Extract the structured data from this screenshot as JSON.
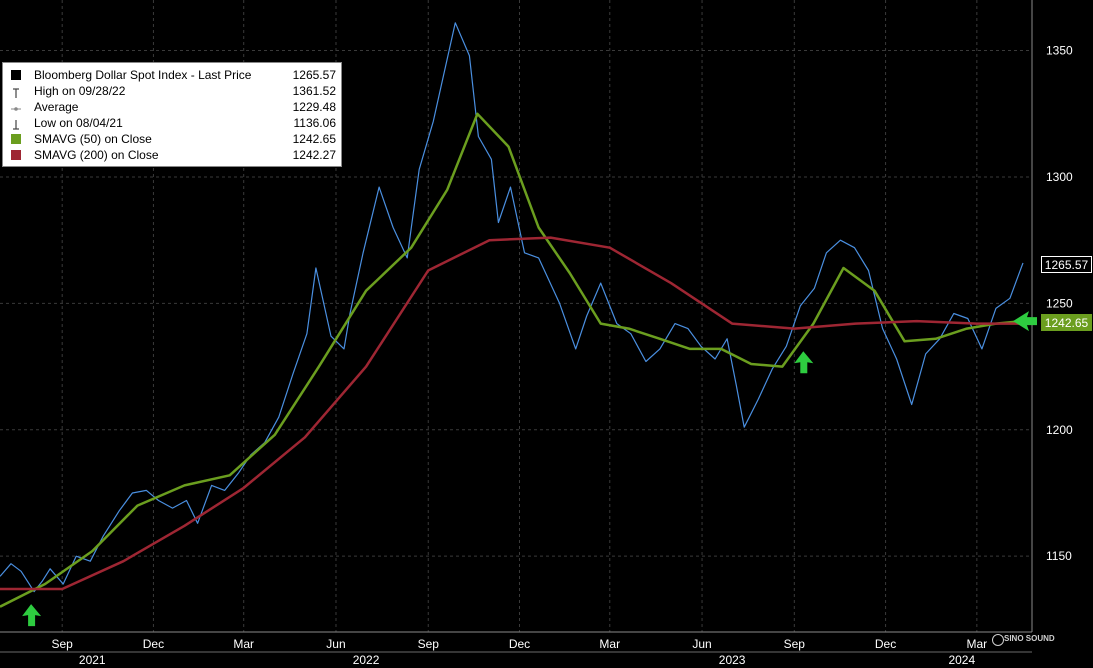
{
  "chart_data": {
    "type": "line",
    "title": "",
    "xlabel": "",
    "ylabel": "",
    "ylim": [
      1120,
      1370
    ],
    "y_ticks": [
      1150,
      1200,
      1250,
      1300,
      1350
    ],
    "x_ticks": [
      {
        "date": "2021-09-01",
        "label": "Sep"
      },
      {
        "date": "2021-12-01",
        "label": "Dec"
      },
      {
        "date": "2022-03-01",
        "label": "Mar"
      },
      {
        "date": "2022-06-01",
        "label": "Jun"
      },
      {
        "date": "2022-09-01",
        "label": "Sep"
      },
      {
        "date": "2022-12-01",
        "label": "Dec"
      },
      {
        "date": "2023-03-01",
        "label": "Mar"
      },
      {
        "date": "2023-06-01",
        "label": "Jun"
      },
      {
        "date": "2023-09-01",
        "label": "Sep"
      },
      {
        "date": "2023-12-01",
        "label": "Dec"
      },
      {
        "date": "2024-03-01",
        "label": "Mar"
      }
    ],
    "year_labels": [
      {
        "date": "2021-10-01",
        "label": "2021"
      },
      {
        "date": "2022-07-01",
        "label": "2022"
      },
      {
        "date": "2023-07-01",
        "label": "2023"
      },
      {
        "date": "2024-02-15",
        "label": "2024"
      }
    ],
    "grid": true,
    "legend_position": "top-left",
    "series": [
      {
        "name": "Bloomberg Dollar Spot Index - Last Price",
        "color": "#4a8fe0",
        "x": [
          "2021-07-01",
          "2021-07-12",
          "2021-07-22",
          "2021-08-04",
          "2021-08-12",
          "2021-08-20",
          "2021-09-02",
          "2021-09-15",
          "2021-09-29",
          "2021-10-12",
          "2021-10-28",
          "2021-11-10",
          "2021-11-24",
          "2021-12-06",
          "2021-12-20",
          "2022-01-03",
          "2022-01-14",
          "2022-01-28",
          "2022-02-10",
          "2022-02-24",
          "2022-03-08",
          "2022-03-22",
          "2022-04-05",
          "2022-04-19",
          "2022-05-03",
          "2022-05-12",
          "2022-05-27",
          "2022-06-09",
          "2022-06-15",
          "2022-06-28",
          "2022-07-14",
          "2022-07-28",
          "2022-08-11",
          "2022-08-23",
          "2022-09-06",
          "2022-09-15",
          "2022-09-28",
          "2022-10-12",
          "2022-10-21",
          "2022-11-03",
          "2022-11-10",
          "2022-11-22",
          "2022-12-06",
          "2022-12-20",
          "2023-01-10",
          "2023-01-26",
          "2023-02-06",
          "2023-02-20",
          "2023-03-08",
          "2023-03-22",
          "2023-04-06",
          "2023-04-20",
          "2023-05-05",
          "2023-05-18",
          "2023-05-31",
          "2023-06-14",
          "2023-06-26",
          "2023-07-05",
          "2023-07-13",
          "2023-07-27",
          "2023-08-10",
          "2023-08-24",
          "2023-09-07",
          "2023-09-21",
          "2023-10-03",
          "2023-10-17",
          "2023-10-31",
          "2023-11-14",
          "2023-11-28",
          "2023-12-12",
          "2023-12-27",
          "2024-01-10",
          "2024-01-24",
          "2024-02-07",
          "2024-02-21",
          "2024-03-06",
          "2024-03-20",
          "2024-04-03",
          "2024-04-16"
        ],
        "values": [
          1142,
          1147,
          1144,
          1136,
          1140,
          1145,
          1139,
          1150,
          1148,
          1158,
          1168,
          1175,
          1176,
          1172,
          1169,
          1172,
          1163,
          1178,
          1176,
          1183,
          1190,
          1195,
          1205,
          1222,
          1238,
          1264,
          1237,
          1232,
          1246,
          1270,
          1296,
          1280,
          1268,
          1303,
          1322,
          1338,
          1361,
          1348,
          1316,
          1307,
          1282,
          1296,
          1270,
          1268,
          1250,
          1232,
          1245,
          1258,
          1242,
          1238,
          1227,
          1232,
          1242,
          1240,
          1233,
          1228,
          1236,
          1218,
          1201,
          1212,
          1224,
          1233,
          1249,
          1256,
          1270,
          1275,
          1272,
          1263,
          1240,
          1228,
          1210,
          1230,
          1236,
          1246,
          1244,
          1232,
          1248,
          1252,
          1266
        ]
      },
      {
        "name": "SMAVG (50)  on Close",
        "color": "#6b9e1f",
        "x": [
          "2021-07-01",
          "2021-08-15",
          "2021-10-01",
          "2021-11-15",
          "2022-01-01",
          "2022-02-15",
          "2022-04-01",
          "2022-05-15",
          "2022-07-01",
          "2022-08-15",
          "2022-09-20",
          "2022-10-20",
          "2022-11-20",
          "2022-12-20",
          "2023-01-20",
          "2023-02-20",
          "2023-03-20",
          "2023-04-20",
          "2023-05-20",
          "2023-06-20",
          "2023-07-20",
          "2023-08-20",
          "2023-09-20",
          "2023-10-20",
          "2023-11-20",
          "2023-12-20",
          "2024-01-20",
          "2024-02-20",
          "2024-03-20",
          "2024-04-16"
        ],
        "values": [
          1130,
          1139,
          1152,
          1170,
          1178,
          1182,
          1198,
          1225,
          1255,
          1272,
          1295,
          1325,
          1312,
          1280,
          1262,
          1242,
          1240,
          1236,
          1232,
          1232,
          1226,
          1225,
          1242,
          1264,
          1255,
          1235,
          1236,
          1240,
          1242,
          1243
        ]
      },
      {
        "name": "SMAVG (200)  on Close",
        "color": "#9e2633",
        "x": [
          "2021-07-01",
          "2021-09-01",
          "2021-11-01",
          "2022-01-01",
          "2022-03-01",
          "2022-05-01",
          "2022-07-01",
          "2022-09-01",
          "2022-11-01",
          "2023-01-01",
          "2023-03-01",
          "2023-05-01",
          "2023-07-01",
          "2023-09-01",
          "2023-11-01",
          "2024-01-01",
          "2024-03-01",
          "2024-04-16"
        ],
        "values": [
          1137,
          1137,
          1148,
          1162,
          1177,
          1197,
          1225,
          1263,
          1275,
          1276,
          1272,
          1258,
          1242,
          1240,
          1242,
          1243,
          1242,
          1242
        ]
      }
    ],
    "legend": {
      "title_row": {
        "label": "Bloomberg Dollar Spot Index - Last Price",
        "value": "1265.57"
      },
      "high": {
        "label": "High on 09/28/22",
        "value": "1361.52"
      },
      "average": {
        "label": "Average",
        "value": "1229.48"
      },
      "low": {
        "label": "Low on 08/04/21",
        "value": "1136.06"
      },
      "sma50": {
        "label": "SMAVG (50)  on Close",
        "value": "1242.65"
      },
      "sma200": {
        "label": "SMAVG (200)  on Close",
        "value": "1242.27"
      }
    },
    "last_value_tags": [
      {
        "text": "1265.57",
        "value": 1265.57,
        "bg": "#000000",
        "fg": "#ffffff",
        "border": "#ffffff"
      },
      {
        "text": "1242.65",
        "value": 1242.65,
        "bg": "#6b9e1f",
        "fg": "#ffffff",
        "border": "#6b9e1f"
      }
    ],
    "annotations": [
      {
        "type": "green-arrow",
        "date": "2021-08-01",
        "value": 1135
      },
      {
        "type": "green-arrow",
        "date": "2023-09-10",
        "value": 1235
      },
      {
        "type": "green-arrow",
        "date": "2024-04-22",
        "value": 1243
      }
    ]
  },
  "colors": {
    "background": "#000000",
    "grid": "#3a3a3a",
    "axis_text": "#ffffff",
    "arrow": "#2ecc40"
  },
  "watermark": "SINO SOUND"
}
